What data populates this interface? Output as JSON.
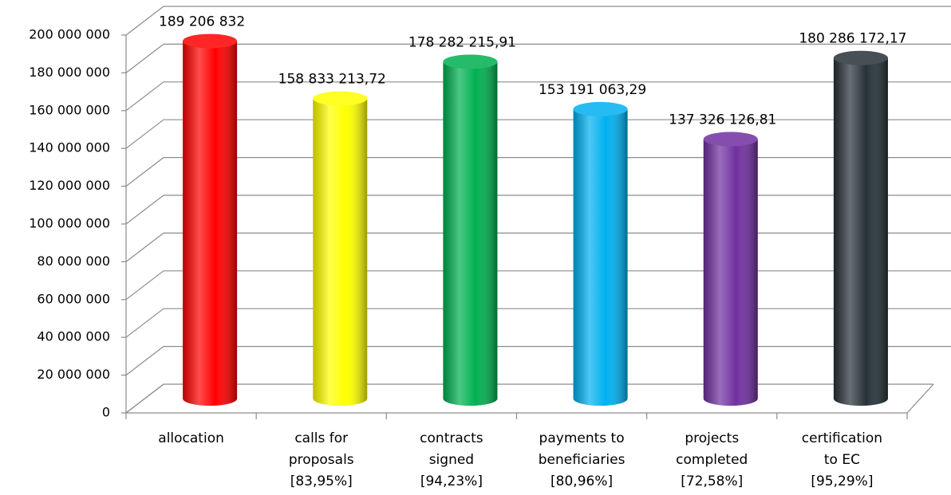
{
  "chart_data": {
    "type": "bar3d",
    "categories": [
      [
        "allocation"
      ],
      [
        "calls for",
        "proposals",
        "[83,95%]"
      ],
      [
        "contracts",
        "signed",
        "[94,23%]"
      ],
      [
        "payments to",
        "beneficiaries",
        "[80,96%]"
      ],
      [
        "projects",
        "completed",
        "[72,58%]"
      ],
      [
        "certification",
        "to EC",
        "[95,29%]"
      ]
    ],
    "values": [
      189206832,
      158833213.72,
      178282215.91,
      153191063.29,
      137326126.81,
      180286172.17
    ],
    "value_labels": [
      "189 206 832",
      "158 833 213,72",
      "178 282 215,91",
      "153 191 063,29",
      "137 326 126,81",
      "180 286 172,17"
    ],
    "colors": [
      "#ff0000",
      "#ffff00",
      "#00b050",
      "#00b0f0",
      "#7030a0",
      "#263238"
    ],
    "ylim": [
      0,
      200000000
    ],
    "yticks": [
      0,
      {
        "value": 20000000,
        "label": "20 000 000"
      },
      {
        "value": 40000000,
        "label": "40 000 000"
      },
      {
        "value": 60000000,
        "label": "60 000 000"
      },
      {
        "value": 80000000,
        "label": "80 000 000"
      },
      {
        "value": 100000000,
        "label": "100 000 000"
      },
      {
        "value": 120000000,
        "label": "120 000 000"
      },
      {
        "value": 140000000,
        "label": "140 000 000"
      },
      {
        "value": 160000000,
        "label": "160 000 000"
      },
      {
        "value": 180000000,
        "label": "180 000 000"
      },
      {
        "value": 200000000,
        "label": "200 000 000"
      }
    ],
    "grid": true
  }
}
